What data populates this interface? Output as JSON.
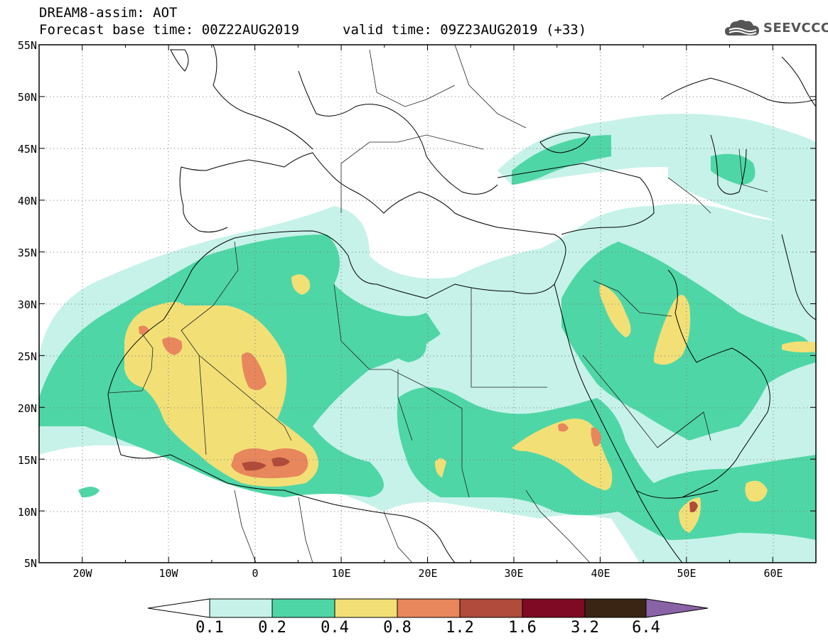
{
  "header": {
    "title_line1": "DREAM8-assim: AOT",
    "base_time": "Forecast base time: 00Z22AUG2019",
    "valid_time": "valid time: 09Z23AUG2019 (+33)"
  },
  "logo": {
    "text": "SEEVCCC",
    "icon": "cloud-icon"
  },
  "map": {
    "lat_labels": [
      "55N",
      "50N",
      "45N",
      "40N",
      "35N",
      "30N",
      "25N",
      "20N",
      "15N",
      "10N",
      "5N"
    ],
    "lon_labels": [
      "20W",
      "10W",
      "0",
      "10E",
      "20E",
      "30E",
      "40E",
      "50E",
      "60E"
    ],
    "lat_range": [
      5,
      55
    ],
    "lon_range": [
      -25,
      65
    ],
    "gridlines": "dotted"
  },
  "colorbar": {
    "levels": [
      "0.1",
      "0.2",
      "0.4",
      "0.8",
      "1.2",
      "1.6",
      "3.2",
      "6.4"
    ],
    "colors": [
      "#c6f2e9",
      "#4fd6a6",
      "#f2e077",
      "#e8865c",
      "#b04a3a",
      "#7d0a22",
      "#3a2414",
      "#8a63a6"
    ]
  }
}
